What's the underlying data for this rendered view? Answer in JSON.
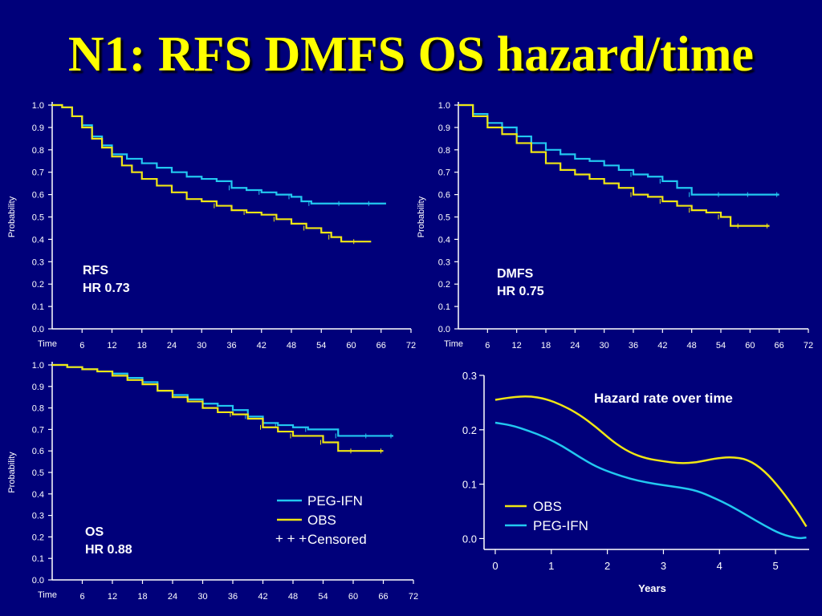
{
  "slide": {
    "title": "N1: RFS DMFS OS hazard/time"
  },
  "colors": {
    "peg_ifn": "#22c8f0",
    "obs": "#f0e614",
    "axis": "#ffffff",
    "background": "#00007a"
  },
  "legend": {
    "items": [
      {
        "label": "PEG-IFN",
        "series": "peg_ifn"
      },
      {
        "label": "OBS",
        "series": "obs"
      },
      {
        "label": "Censored",
        "series": "censored"
      }
    ]
  },
  "chart_data": [
    {
      "id": "rfs",
      "type": "line",
      "step": true,
      "ylabel": "Probability",
      "xlabel": "Time",
      "xlim": [
        0,
        72
      ],
      "ylim": [
        0,
        1
      ],
      "x_ticks": [
        6,
        12,
        18,
        24,
        30,
        36,
        42,
        48,
        54,
        60,
        66,
        72
      ],
      "y_ticks": [
        "0.0",
        "0.1",
        "0.2",
        "0.3",
        "0.4",
        "0.5",
        "0.6",
        "0.7",
        "0.8",
        "0.9",
        "1.0"
      ],
      "annotation": {
        "line1": "RFS",
        "line2": "HR 0.73"
      },
      "series": [
        {
          "key": "peg_ifn",
          "x": [
            0,
            2,
            4,
            6,
            8,
            10,
            12,
            15,
            18,
            21,
            24,
            27,
            30,
            33,
            36,
            39,
            42,
            45,
            48,
            50,
            52,
            55,
            58,
            61,
            64,
            67
          ],
          "y": [
            1.0,
            0.99,
            0.95,
            0.91,
            0.86,
            0.82,
            0.78,
            0.76,
            0.74,
            0.72,
            0.7,
            0.68,
            0.67,
            0.66,
            0.63,
            0.62,
            0.61,
            0.6,
            0.59,
            0.57,
            0.56,
            0.56,
            0.56,
            0.56,
            0.56,
            0.56
          ]
        },
        {
          "key": "obs",
          "x": [
            0,
            2,
            4,
            6,
            8,
            10,
            12,
            14,
            16,
            18,
            21,
            24,
            27,
            30,
            33,
            36,
            39,
            42,
            45,
            48,
            51,
            54,
            56,
            58,
            61,
            64
          ],
          "y": [
            1.0,
            0.99,
            0.95,
            0.9,
            0.85,
            0.81,
            0.77,
            0.73,
            0.7,
            0.67,
            0.64,
            0.61,
            0.58,
            0.57,
            0.55,
            0.53,
            0.52,
            0.51,
            0.49,
            0.47,
            0.45,
            0.43,
            0.41,
            0.39,
            0.39,
            0.39
          ]
        }
      ]
    },
    {
      "id": "dmfs",
      "type": "line",
      "step": true,
      "ylabel": "Probability",
      "xlabel": "Time",
      "xlim": [
        0,
        72
      ],
      "ylim": [
        0,
        1
      ],
      "x_ticks": [
        6,
        12,
        18,
        24,
        30,
        36,
        42,
        48,
        54,
        60,
        66,
        72
      ],
      "y_ticks": [
        "0.0",
        "0.1",
        "0.2",
        "0.3",
        "0.4",
        "0.5",
        "0.6",
        "0.7",
        "0.8",
        "0.9",
        "1.0"
      ],
      "annotation": {
        "line1": "DMFS",
        "line2": "HR 0.75"
      },
      "series": [
        {
          "key": "peg_ifn",
          "x": [
            0,
            3,
            6,
            9,
            12,
            15,
            18,
            21,
            24,
            27,
            30,
            33,
            36,
            39,
            42,
            45,
            48,
            51,
            54,
            57,
            60,
            63,
            66
          ],
          "y": [
            1.0,
            0.96,
            0.92,
            0.9,
            0.86,
            0.83,
            0.8,
            0.78,
            0.76,
            0.75,
            0.73,
            0.71,
            0.69,
            0.68,
            0.66,
            0.63,
            0.6,
            0.6,
            0.6,
            0.6,
            0.6,
            0.6,
            0.6
          ]
        },
        {
          "key": "obs",
          "x": [
            0,
            3,
            6,
            9,
            12,
            15,
            18,
            21,
            24,
            27,
            30,
            33,
            36,
            39,
            42,
            45,
            48,
            51,
            54,
            56,
            58,
            61,
            64
          ],
          "y": [
            1.0,
            0.95,
            0.9,
            0.87,
            0.83,
            0.79,
            0.74,
            0.71,
            0.69,
            0.67,
            0.65,
            0.63,
            0.6,
            0.59,
            0.57,
            0.55,
            0.53,
            0.52,
            0.5,
            0.46,
            0.46,
            0.46,
            0.46
          ]
        }
      ]
    },
    {
      "id": "os",
      "type": "line",
      "step": true,
      "ylabel": "Probability",
      "xlabel": "Time",
      "xlim": [
        0,
        72
      ],
      "ylim": [
        0,
        1
      ],
      "x_ticks": [
        6,
        12,
        18,
        24,
        30,
        36,
        42,
        48,
        54,
        60,
        66,
        72
      ],
      "y_ticks": [
        "0.0",
        "0.1",
        "0.2",
        "0.3",
        "0.4",
        "0.5",
        "0.6",
        "0.7",
        "0.8",
        "0.9",
        "1.0"
      ],
      "annotation": {
        "line1": "OS",
        "line2": "HR 0.88"
      },
      "series": [
        {
          "key": "peg_ifn",
          "x": [
            0,
            3,
            6,
            9,
            12,
            15,
            18,
            21,
            24,
            27,
            30,
            33,
            36,
            39,
            42,
            45,
            48,
            51,
            54,
            57,
            60,
            63,
            66,
            68
          ],
          "y": [
            1.0,
            0.99,
            0.98,
            0.97,
            0.96,
            0.94,
            0.92,
            0.88,
            0.86,
            0.84,
            0.82,
            0.81,
            0.79,
            0.76,
            0.73,
            0.72,
            0.71,
            0.7,
            0.7,
            0.67,
            0.67,
            0.67,
            0.67,
            0.67
          ]
        },
        {
          "key": "obs",
          "x": [
            0,
            3,
            6,
            9,
            12,
            15,
            18,
            21,
            24,
            27,
            30,
            33,
            36,
            39,
            42,
            45,
            48,
            51,
            54,
            57,
            60,
            63,
            66
          ],
          "y": [
            1.0,
            0.99,
            0.98,
            0.97,
            0.95,
            0.93,
            0.91,
            0.88,
            0.85,
            0.83,
            0.8,
            0.78,
            0.77,
            0.75,
            0.71,
            0.69,
            0.67,
            0.67,
            0.64,
            0.6,
            0.6,
            0.6,
            0.6
          ]
        }
      ]
    },
    {
      "id": "hazard",
      "type": "line",
      "title": "Hazard rate over time",
      "xlabel": "Years",
      "xlim": [
        -0.2,
        5.6
      ],
      "ylim": [
        -0.02,
        0.3
      ],
      "x_ticks": [
        "0",
        "1",
        "2",
        "3",
        "4",
        "5"
      ],
      "y_ticks": [
        "0.0",
        "0.1",
        "0.2",
        "0.3"
      ],
      "series": [
        {
          "key": "obs",
          "name": "OBS",
          "x": [
            0,
            0.3,
            0.6,
            0.9,
            1.2,
            1.5,
            1.8,
            2.1,
            2.4,
            2.7,
            3.0,
            3.3,
            3.6,
            3.9,
            4.2,
            4.5,
            4.8,
            5.1,
            5.4,
            5.55
          ],
          "y": [
            0.255,
            0.26,
            0.262,
            0.257,
            0.245,
            0.228,
            0.205,
            0.178,
            0.158,
            0.147,
            0.142,
            0.138,
            0.14,
            0.147,
            0.15,
            0.146,
            0.125,
            0.09,
            0.047,
            0.022
          ]
        },
        {
          "key": "peg_ifn",
          "name": "PEG-IFN",
          "x": [
            0,
            0.3,
            0.6,
            0.9,
            1.2,
            1.5,
            1.8,
            2.1,
            2.4,
            2.7,
            3.0,
            3.3,
            3.6,
            3.9,
            4.2,
            4.5,
            4.8,
            5.1,
            5.4,
            5.55
          ],
          "y": [
            0.213,
            0.208,
            0.198,
            0.186,
            0.17,
            0.15,
            0.132,
            0.12,
            0.11,
            0.103,
            0.098,
            0.094,
            0.088,
            0.075,
            0.06,
            0.042,
            0.024,
            0.008,
            0.0,
            0.002
          ]
        }
      ]
    }
  ]
}
